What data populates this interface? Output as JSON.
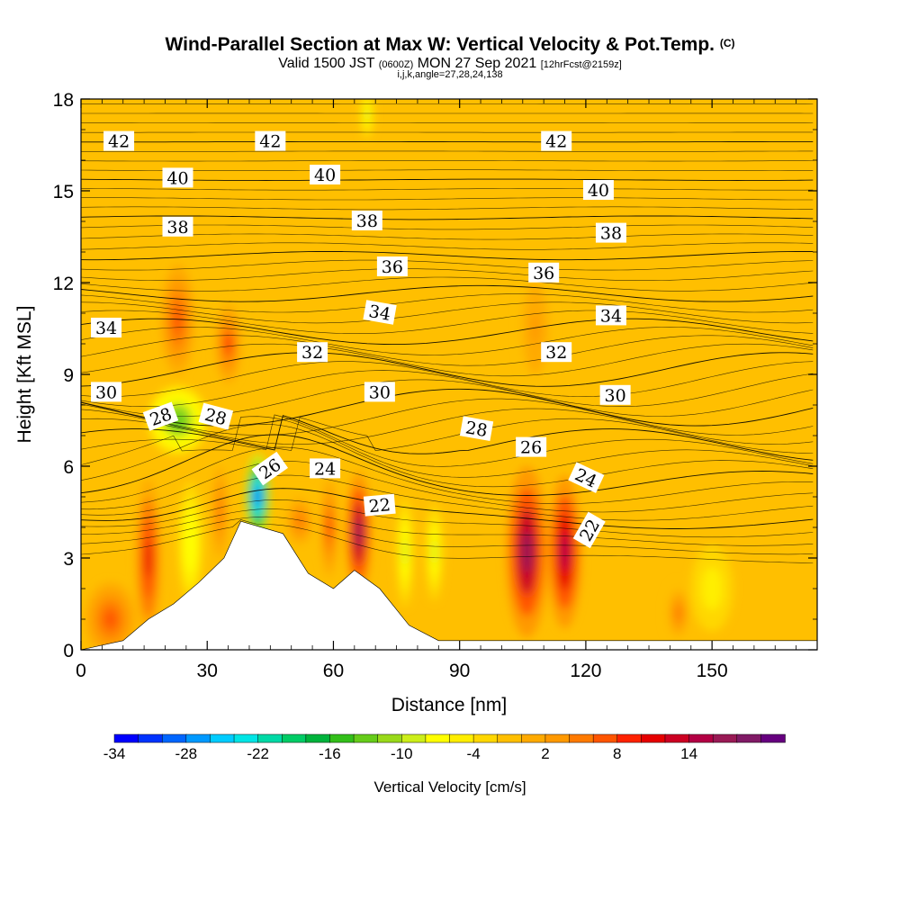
{
  "title": {
    "main": "Wind-Parallel Section at Max W: Vertical Velocity & Pot.Temp.",
    "copyright": "(C)",
    "valid_prefix": "Valid 1500 JST",
    "utc": "(0600Z)",
    "valid_date": "MON 27 Sep 2021",
    "forecast": "[12hrFcst@2159z]",
    "params": "i,j,k,angle=27,28,24,138"
  },
  "chart_data": {
    "type": "heatmap",
    "xlabel": "Distance [nm]",
    "ylabel": "Height [Kft MSL]",
    "xlim": [
      0,
      175
    ],
    "ylim": [
      0,
      18
    ],
    "xticks": [
      0,
      30,
      60,
      90,
      120,
      150
    ],
    "yticks": [
      0,
      3,
      6,
      9,
      12,
      15,
      18
    ],
    "background_value": "-2",
    "velocity_cells": [
      {
        "x": 7,
        "y": 1.0,
        "rx": 6,
        "ry": 1.2,
        "v": 6
      },
      {
        "x": 16,
        "y": 3.0,
        "rx": 3,
        "ry": 2.6,
        "v": 11
      },
      {
        "x": 23,
        "y": 7.5,
        "rx": 7,
        "ry": 1.1,
        "v": -14
      },
      {
        "x": 26,
        "y": 3.5,
        "rx": 3,
        "ry": 2.0,
        "v": -8
      },
      {
        "x": 23,
        "y": 10.8,
        "rx": 4,
        "ry": 1.8,
        "v": 6
      },
      {
        "x": 35,
        "y": 10.0,
        "rx": 3,
        "ry": 1.3,
        "v": 8
      },
      {
        "x": 33,
        "y": 4.5,
        "rx": 2.5,
        "ry": 2.0,
        "v": 5
      },
      {
        "x": 42,
        "y": 5.0,
        "rx": 3,
        "ry": 1.4,
        "v": -30
      },
      {
        "x": 52,
        "y": 4.2,
        "rx": 4,
        "ry": 1.0,
        "v": 5
      },
      {
        "x": 59,
        "y": 4.0,
        "rx": 2,
        "ry": 1.6,
        "v": 8
      },
      {
        "x": 66,
        "y": 3.8,
        "rx": 3,
        "ry": 2.0,
        "v": 17
      },
      {
        "x": 77,
        "y": 3.2,
        "rx": 2,
        "ry": 1.8,
        "v": -9
      },
      {
        "x": 84,
        "y": 3.2,
        "rx": 2,
        "ry": 1.6,
        "v": -9
      },
      {
        "x": 68,
        "y": 17.5,
        "rx": 1.5,
        "ry": 0.8,
        "v": -10
      },
      {
        "x": 106,
        "y": 3.2,
        "rx": 5,
        "ry": 2.8,
        "v": 17
      },
      {
        "x": 115,
        "y": 3.2,
        "rx": 4,
        "ry": 2.5,
        "v": 14
      },
      {
        "x": 150,
        "y": 2.0,
        "rx": 5,
        "ry": 1.4,
        "v": -6
      },
      {
        "x": 142,
        "y": 1.2,
        "rx": 3,
        "ry": 1.0,
        "v": 4
      },
      {
        "x": 108,
        "y": 10.5,
        "rx": 4,
        "ry": 2.0,
        "v": 2
      }
    ],
    "terrain": [
      {
        "x": 0,
        "y": 0
      },
      {
        "x": 10,
        "y": 0.3
      },
      {
        "x": 16,
        "y": 1.0
      },
      {
        "x": 22,
        "y": 1.5
      },
      {
        "x": 28,
        "y": 2.2
      },
      {
        "x": 34,
        "y": 3.0
      },
      {
        "x": 38,
        "y": 4.2
      },
      {
        "x": 48,
        "y": 3.8
      },
      {
        "x": 54,
        "y": 2.5
      },
      {
        "x": 60,
        "y": 2.0
      },
      {
        "x": 65,
        "y": 2.6
      },
      {
        "x": 71,
        "y": 2.0
      },
      {
        "x": 78,
        "y": 0.8
      },
      {
        "x": 85,
        "y": 0.3
      },
      {
        "x": 175,
        "y": 0.3
      }
    ],
    "isentropes": [
      {
        "level": 22,
        "labels": [
          {
            "text": "22",
            "x": 71,
            "y": 4.7,
            "rot": -5
          },
          {
            "text": "22",
            "x": 121,
            "y": 3.9,
            "rot": -60
          }
        ]
      },
      {
        "level": 24,
        "labels": [
          {
            "text": "24",
            "x": 58,
            "y": 5.9,
            "rot": 0
          },
          {
            "text": "24",
            "x": 120,
            "y": 5.6,
            "rot": 25
          }
        ]
      },
      {
        "level": 26,
        "labels": [
          {
            "text": "26",
            "x": 45,
            "y": 5.9,
            "rot": -35
          },
          {
            "text": "26",
            "x": 107,
            "y": 6.6,
            "rot": 0
          }
        ]
      },
      {
        "level": 28,
        "labels": [
          {
            "text": "28",
            "x": 19,
            "y": 7.6,
            "rot": -20
          },
          {
            "text": "28",
            "x": 32,
            "y": 7.6,
            "rot": 15
          },
          {
            "text": "28",
            "x": 94,
            "y": 7.2,
            "rot": 10
          }
        ]
      },
      {
        "level": 30,
        "labels": [
          {
            "text": "30",
            "x": 6,
            "y": 8.4,
            "rot": 0
          },
          {
            "text": "30",
            "x": 71,
            "y": 8.4,
            "rot": 0
          },
          {
            "text": "30",
            "x": 127,
            "y": 8.3,
            "rot": 0
          }
        ]
      },
      {
        "level": 32,
        "labels": [
          {
            "text": "32",
            "x": 55,
            "y": 9.7,
            "rot": 0
          },
          {
            "text": "32",
            "x": 113,
            "y": 9.7,
            "rot": 0
          }
        ]
      },
      {
        "level": 34,
        "labels": [
          {
            "text": "34",
            "x": 6,
            "y": 10.5,
            "rot": 0
          },
          {
            "text": "34",
            "x": 71,
            "y": 11.0,
            "rot": 10
          },
          {
            "text": "34",
            "x": 126,
            "y": 10.9,
            "rot": 0
          }
        ]
      },
      {
        "level": 36,
        "labels": [
          {
            "text": "36",
            "x": 74,
            "y": 12.5,
            "rot": 0
          },
          {
            "text": "36",
            "x": 110,
            "y": 12.3,
            "rot": 0
          }
        ]
      },
      {
        "level": 38,
        "labels": [
          {
            "text": "38",
            "x": 23,
            "y": 13.8,
            "rot": 0
          },
          {
            "text": "38",
            "x": 68,
            "y": 14.0,
            "rot": 0
          },
          {
            "text": "38",
            "x": 126,
            "y": 13.6,
            "rot": 0
          }
        ]
      },
      {
        "level": 40,
        "labels": [
          {
            "text": "40",
            "x": 23,
            "y": 15.4,
            "rot": 0
          },
          {
            "text": "40",
            "x": 58,
            "y": 15.5,
            "rot": 0
          },
          {
            "text": "40",
            "x": 123,
            "y": 15.0,
            "rot": 0
          }
        ]
      },
      {
        "level": 42,
        "labels": [
          {
            "text": "42",
            "x": 9,
            "y": 16.6,
            "rot": 0
          },
          {
            "text": "42",
            "x": 45,
            "y": 16.6,
            "rot": 0
          },
          {
            "text": "42",
            "x": 113,
            "y": 16.6,
            "rot": 0
          }
        ]
      }
    ],
    "colorbar": {
      "label": "Vertical Velocity [cm/s]",
      "tick_labels": [
        "-34",
        "-28",
        "-22",
        "-16",
        "-10",
        "-4",
        "2",
        "8",
        "14"
      ],
      "colors": [
        "#0000ff",
        "#0033ff",
        "#0066ff",
        "#0099ff",
        "#00ccff",
        "#00e5e5",
        "#00d9a6",
        "#00cc66",
        "#00b33c",
        "#33bf1a",
        "#66cc1a",
        "#99d91a",
        "#ccee1a",
        "#ffff00",
        "#ffee00",
        "#ffd700",
        "#ffbf00",
        "#ffaa00",
        "#ff9900",
        "#ff7a00",
        "#ff5500",
        "#ff2200",
        "#e60000",
        "#cc0022",
        "#b30044",
        "#991a55",
        "#801a66",
        "#66007f"
      ]
    }
  }
}
